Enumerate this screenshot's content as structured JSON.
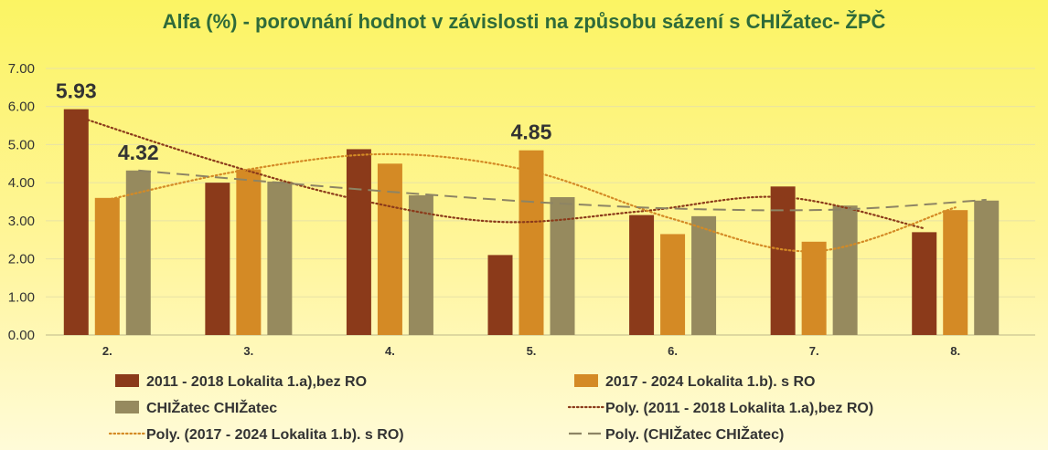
{
  "chart_data": {
    "type": "bar",
    "title": "Alfa (%) - porovnání hodnot v závislosti na způsobu sázení s CHIŽatec- ŽPČ",
    "categories": [
      "2.",
      "3.",
      "4.",
      "5.",
      "6.",
      "7.",
      "8."
    ],
    "ylim": [
      0,
      7
    ],
    "yticks": [
      "0.00",
      "1.00",
      "2.00",
      "3.00",
      "4.00",
      "5.00",
      "6.00",
      "7.00"
    ],
    "grid": true,
    "legend_position": "bottom",
    "series": [
      {
        "name": "2011 - 2018 Lokalita 1.a),bez RO",
        "color": "#8b3a1a",
        "values": [
          5.93,
          4.0,
          4.88,
          2.1,
          3.15,
          3.9,
          2.7
        ]
      },
      {
        "name": "2017 - 2024 Lokalita 1.b). s RO",
        "color": "#d48a25",
        "values": [
          3.6,
          4.35,
          4.5,
          4.85,
          2.65,
          2.45,
          3.28
        ]
      },
      {
        "name": "CHIŽatec CHIŽatec",
        "color": "#968a5e",
        "values": [
          4.32,
          4.03,
          3.67,
          3.62,
          3.12,
          3.4,
          3.53
        ]
      }
    ],
    "trendlines": [
      {
        "name": "Poly. (2011 - 2018 Lokalita 1.a),bez RO)",
        "series": 0,
        "color": "#8b3a1a",
        "style": "dotted",
        "values": [
          5.75,
          4.55,
          3.55,
          2.97,
          3.25,
          3.62,
          2.8
        ]
      },
      {
        "name": "Poly. (2017 - 2024 Lokalita 1.b). s RO)",
        "series": 1,
        "color": "#d48a25",
        "style": "dotted",
        "values": [
          3.55,
          4.35,
          4.75,
          4.3,
          3.05,
          2.2,
          3.35
        ]
      },
      {
        "name": "Poly. (CHIŽatec CHIŽatec)",
        "series": 2,
        "color": "#8d8464",
        "style": "dashed",
        "values": [
          4.32,
          4.0,
          3.7,
          3.45,
          3.3,
          3.3,
          3.55
        ]
      }
    ],
    "data_labels": [
      {
        "series": 0,
        "index": 0,
        "text": "5.93"
      },
      {
        "series": 2,
        "index": 0,
        "text": "4.32"
      },
      {
        "series": 1,
        "index": 3,
        "text": "4.85"
      }
    ]
  }
}
